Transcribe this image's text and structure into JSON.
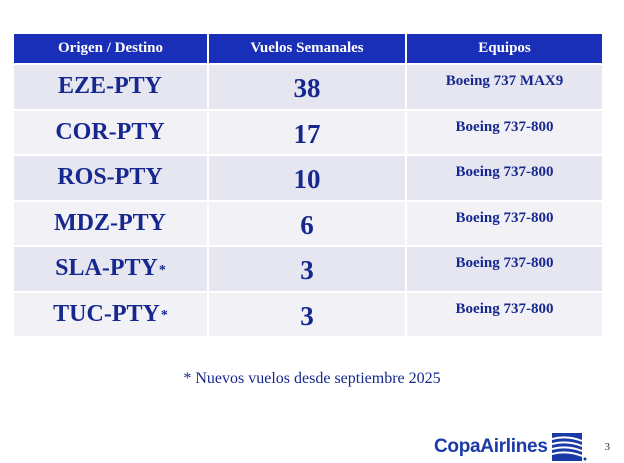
{
  "table": {
    "headers": [
      "Origen / Destino",
      "Vuelos Semanales",
      "Equipos"
    ],
    "rows": [
      {
        "route": "EZE-PTY",
        "star": "",
        "flights": "38",
        "equipment": "Boeing 737 MAX9"
      },
      {
        "route": "COR-PTY",
        "star": "",
        "flights": "17",
        "equipment": "Boeing 737-800"
      },
      {
        "route": "ROS-PTY",
        "star": "",
        "flights": "10",
        "equipment": "Boeing 737-800"
      },
      {
        "route": "MDZ-PTY",
        "star": "",
        "flights": "6",
        "equipment": "Boeing 737-800"
      },
      {
        "route": "SLA-PTY",
        "star": "*",
        "flights": "3",
        "equipment": "Boeing 737-800"
      },
      {
        "route": "TUC-PTY",
        "star": "*",
        "flights": "3",
        "equipment": "Boeing 737-800"
      }
    ]
  },
  "footnote": "* Nuevos vuelos desde septiembre 2025",
  "page_number": "3",
  "logo": {
    "text": "CopaAirlines",
    "icon": "copa-airlines-logo-icon",
    "color": "#1a3aa8"
  },
  "colors": {
    "header_bg": "#1a2fb8",
    "text": "#16288f",
    "row_odd": "#e6e6f0",
    "row_even": "#f2f2f6"
  }
}
